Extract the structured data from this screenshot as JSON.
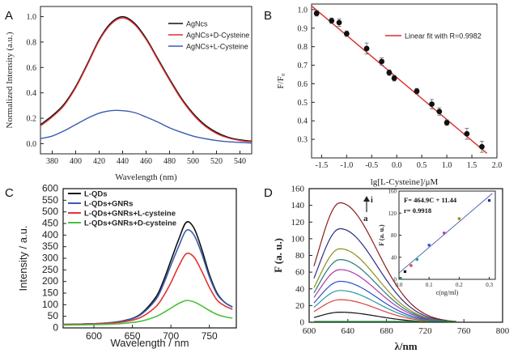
{
  "chart_data": [
    {
      "panel": "A",
      "type": "line",
      "xlabel": "Wavelength (nm)",
      "ylabel": "Normalized Intensity (a.u.)",
      "xlim": [
        370,
        550
      ],
      "ylim": [
        -0.08,
        1.08
      ],
      "xticks": [
        380,
        400,
        420,
        440,
        460,
        480,
        500,
        520,
        540
      ],
      "yticks": [
        0.0,
        0.2,
        0.4,
        0.6,
        0.8,
        1.0
      ],
      "yticklabels": [
        "0.0",
        "0.2",
        "0.4",
        "0.6",
        "0.8",
        "1.0"
      ],
      "legend": "top-right",
      "series": [
        {
          "name": "AgNcs",
          "color": "#111111",
          "x": [
            370,
            380,
            390,
            400,
            410,
            420,
            430,
            440,
            450,
            460,
            470,
            480,
            490,
            500,
            510,
            520,
            530,
            540,
            550
          ],
          "y": [
            0.15,
            0.22,
            0.31,
            0.45,
            0.63,
            0.82,
            0.95,
            1.0,
            0.95,
            0.83,
            0.67,
            0.51,
            0.36,
            0.24,
            0.15,
            0.09,
            0.05,
            0.03,
            0.02
          ]
        },
        {
          "name": "AgNCs+D-Cysteine",
          "color": "#d93030",
          "x": [
            370,
            380,
            390,
            400,
            410,
            420,
            430,
            440,
            450,
            460,
            470,
            480,
            490,
            500,
            510,
            520,
            530,
            540,
            550
          ],
          "y": [
            0.14,
            0.21,
            0.3,
            0.44,
            0.62,
            0.81,
            0.94,
            0.99,
            0.94,
            0.82,
            0.66,
            0.5,
            0.35,
            0.23,
            0.14,
            0.08,
            0.045,
            0.025,
            0.015
          ]
        },
        {
          "name": "AgNCs+L-Cysteine",
          "color": "#3b5bb0",
          "x": [
            370,
            380,
            390,
            400,
            410,
            420,
            430,
            440,
            450,
            460,
            470,
            480,
            490,
            500,
            510,
            520,
            530,
            540,
            550
          ],
          "y": [
            0.04,
            0.06,
            0.1,
            0.15,
            0.2,
            0.24,
            0.26,
            0.26,
            0.245,
            0.21,
            0.17,
            0.125,
            0.09,
            0.06,
            0.04,
            0.025,
            0.015,
            0.01,
            0.005
          ]
        }
      ]
    },
    {
      "panel": "B",
      "type": "scatter",
      "xlabel": "lg[L-Cysteine]/μM",
      "ylabel": "F/F₀",
      "xlim": [
        -1.7,
        2.0
      ],
      "ylim": [
        0.2,
        1.03
      ],
      "xticks": [
        -1.5,
        -1.0,
        -0.5,
        0.0,
        0.5,
        1.0,
        1.5,
        2.0
      ],
      "xticklabels": [
        "-1.5",
        "-1.0",
        "-0.5",
        "0.0",
        "0.5",
        "1.0",
        "1.5",
        "2.0"
      ],
      "yticks": [
        0.3,
        0.4,
        0.5,
        0.6,
        0.7,
        0.8,
        0.9,
        1.0
      ],
      "yticklabels": [
        "0.3",
        "0.4",
        "0.5",
        "0.6",
        "0.7",
        "0.8",
        "0.9",
        "1.0"
      ],
      "legend": "top-right",
      "points": {
        "x": [
          -1.6,
          -1.3,
          -1.15,
          -1.0,
          -0.6,
          -0.3,
          -0.15,
          -0.05,
          0.4,
          0.7,
          0.85,
          1.0,
          1.4,
          1.7
        ],
        "y": [
          0.98,
          0.94,
          0.93,
          0.87,
          0.79,
          0.72,
          0.66,
          0.63,
          0.56,
          0.49,
          0.45,
          0.39,
          0.33,
          0.26
        ],
        "err": [
          0.015,
          0.015,
          0.02,
          0.015,
          0.03,
          0.02,
          0.015,
          0.015,
          0.015,
          0.025,
          0.02,
          0.015,
          0.03,
          0.03
        ]
      },
      "fit": {
        "name": "Linear fit with R=0.9982",
        "color": "#d93030",
        "x": [
          -1.7,
          1.8
        ],
        "y": [
          1.02,
          0.225
        ]
      }
    },
    {
      "panel": "C",
      "type": "line",
      "xlabel": "Wavelength / nm",
      "ylabel": "Intensity / a.u.",
      "xlim": [
        560,
        785
      ],
      "ylim": [
        0,
        600
      ],
      "xticks": [
        600,
        650,
        700,
        750
      ],
      "yticks": [
        0,
        50,
        100,
        150,
        200,
        250,
        300,
        350,
        400,
        450,
        500,
        550,
        600
      ],
      "legend": "top-left",
      "series": [
        {
          "name": "L-QDs",
          "color": "#111111",
          "x": [
            560,
            580,
            600,
            620,
            640,
            660,
            680,
            690,
            700,
            710,
            720,
            730,
            740,
            750,
            760,
            770,
            780
          ],
          "y": [
            15,
            16,
            18,
            22,
            32,
            58,
            130,
            200,
            290,
            380,
            455,
            430,
            340,
            230,
            150,
            110,
            90
          ]
        },
        {
          "name": "L-QDs+GNRs",
          "color": "#3b5bb0",
          "x": [
            560,
            580,
            600,
            620,
            640,
            660,
            680,
            690,
            700,
            710,
            720,
            730,
            740,
            750,
            760,
            770,
            780
          ],
          "y": [
            15,
            16,
            18,
            22,
            31,
            55,
            120,
            185,
            270,
            350,
            420,
            400,
            320,
            220,
            145,
            110,
            90
          ]
        },
        {
          "name": "L-QDs+GNRs+L-cysteine",
          "color": "#e03434",
          "x": [
            560,
            580,
            600,
            620,
            640,
            660,
            680,
            690,
            700,
            710,
            720,
            730,
            740,
            750,
            760,
            770,
            780
          ],
          "y": [
            14,
            15,
            17,
            20,
            27,
            44,
            90,
            135,
            195,
            265,
            320,
            305,
            245,
            175,
            120,
            95,
            80
          ]
        },
        {
          "name": "L-QDs+GNRs+D-cysteine",
          "color": "#4cbf3c",
          "x": [
            560,
            580,
            600,
            620,
            640,
            660,
            680,
            690,
            700,
            710,
            720,
            730,
            740,
            750,
            760,
            770,
            780
          ],
          "y": [
            12,
            13,
            14,
            16,
            20,
            28,
            48,
            65,
            85,
            105,
            118,
            112,
            95,
            75,
            58,
            48,
            42
          ]
        }
      ]
    },
    {
      "panel": "D",
      "type": "line",
      "xlabel": "λ/nm",
      "ylabel": "F (a. u.)",
      "xlim": [
        600,
        800
      ],
      "ylim": [
        0,
        160
      ],
      "xticks": [
        600,
        640,
        680,
        720,
        760,
        800
      ],
      "yticks": [
        0,
        20,
        40,
        60,
        80,
        100,
        120,
        140,
        160
      ],
      "annotation_arrow": "i",
      "annotation_label": "a",
      "series_peaks": [
        {
          "color": "#8b1a1a",
          "peak": 143
        },
        {
          "color": "#2b2b88",
          "peak": 112
        },
        {
          "color": "#8e8e1a",
          "peak": 88
        },
        {
          "color": "#2a7a7a",
          "peak": 75
        },
        {
          "color": "#b03aa8",
          "peak": 63
        },
        {
          "color": "#2a4fcf",
          "peak": 49
        },
        {
          "color": "#2a9a9a",
          "peak": 38
        },
        {
          "color": "#e04040",
          "peak": 27
        },
        {
          "color": "#111111",
          "peak": 12
        },
        {
          "color": "#1f8f3f",
          "peak": 1
        }
      ],
      "inset": {
        "type": "scatter",
        "xlabel": "c(ng/ml)",
        "ylabel": "F (a. u.)",
        "xlim": [
          0,
          0.32
        ],
        "ylim": [
          0,
          160
        ],
        "xticks": [
          0.0,
          0.1,
          0.2,
          0.3
        ],
        "xticklabels": [
          "0.0",
          "0.1",
          "0.2",
          "0.3"
        ],
        "yticks": [
          0,
          40,
          80,
          120,
          160
        ],
        "equation": "F= 464.9C + 11.44",
        "r_value": "r= 0.9918",
        "points": {
          "x": [
            0.005,
            0.02,
            0.04,
            0.06,
            0.1,
            0.15,
            0.2,
            0.3
          ],
          "y": [
            2,
            14,
            25,
            36,
            62,
            84,
            110,
            143
          ],
          "colors": [
            "#1f8f3f",
            "#111111",
            "#e04040",
            "#2a9a9a",
            "#2a4fcf",
            "#b03aa8",
            "#8e8e1a",
            "#2b2b88"
          ]
        },
        "fit": {
          "x": [
            0,
            0.31
          ],
          "y": [
            11.44,
            155.6
          ]
        }
      }
    }
  ],
  "panel_labels": [
    "A",
    "B",
    "C",
    "D"
  ]
}
